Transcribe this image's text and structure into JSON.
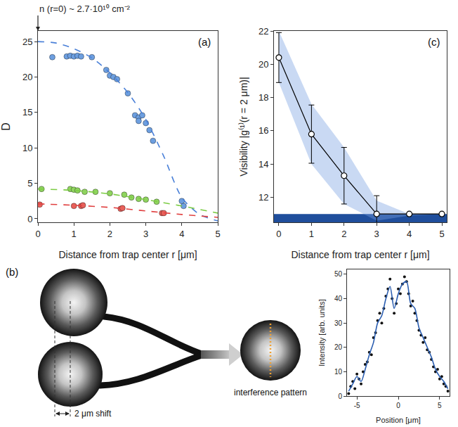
{
  "chart_data": [
    {
      "type": "scatter",
      "panel_label": "(a)",
      "annotations": [
        {
          "text": "n (r=0) ~ 2.7·10¹⁰ cm⁻²",
          "x": 0
        }
      ],
      "xlabel": "Distance from trap center r [μm]",
      "ylabel": "D",
      "xlim": [
        0,
        5
      ],
      "xticks": [
        0,
        1,
        2,
        3,
        4,
        5
      ],
      "ylim": [
        -0.5,
        26.5
      ],
      "yticks": [
        0,
        5,
        10,
        15,
        20,
        25
      ],
      "grid": false,
      "series": [
        {
          "type": "scatter",
          "marker": "circle",
          "color": "#6d9fe0",
          "x": [
            0.4,
            0.8,
            0.9,
            1.0,
            1.1,
            1.2,
            1.5,
            1.9,
            2.0,
            2.1,
            2.2,
            2.5,
            2.7,
            2.8,
            2.8,
            2.9,
            3.0,
            3.1,
            3.2,
            4.0,
            4.05
          ],
          "values": [
            22.8,
            22.9,
            23.0,
            22.9,
            23.0,
            22.9,
            22.8,
            21.0,
            20.2,
            20.0,
            19.7,
            17.7,
            14.6,
            14.3,
            13.8,
            14.6,
            13.5,
            12.5,
            11.0,
            2.5,
            1.8
          ]
        },
        {
          "type": "line",
          "line_style": "dash",
          "color": "#4a80d8",
          "x": [
            0,
            0.5,
            1,
            1.5,
            2,
            2.5,
            3,
            3.5,
            4,
            4.5,
            5
          ],
          "values": [
            25,
            24.8,
            24.0,
            22.7,
            20.6,
            17.8,
            14.0,
            8.8,
            3.0,
            0.6,
            -0.3
          ]
        },
        {
          "type": "scatter",
          "marker": "circle",
          "color": "#8fd45e",
          "x": [
            0.1,
            0.9,
            1.0,
            1.1,
            1.3,
            1.6,
            2.0,
            2.4,
            2.6,
            2.8,
            3.0,
            3.3
          ],
          "values": [
            4.2,
            4.2,
            4.1,
            4.0,
            3.8,
            3.8,
            3.6,
            3.4,
            3.0,
            2.8,
            2.7,
            2.4
          ]
        },
        {
          "type": "line",
          "line_style": "dash",
          "color": "#7ccc44",
          "x": [
            0,
            1,
            2,
            3,
            4,
            5
          ],
          "values": [
            4.2,
            4.0,
            3.5,
            2.7,
            1.8,
            0.8
          ]
        },
        {
          "type": "scatter",
          "marker": "circle",
          "color": "#e8605a",
          "x": [
            0.05,
            1.0,
            1.2,
            1.25,
            2.3,
            2.35,
            3.45,
            3.5
          ],
          "values": [
            2.0,
            1.8,
            1.8,
            1.9,
            1.4,
            1.5,
            0.8,
            0.8
          ]
        },
        {
          "type": "line",
          "line_style": "dash",
          "color": "#e04040",
          "x": [
            0,
            1,
            2,
            3,
            4,
            5
          ],
          "values": [
            2.1,
            1.9,
            1.6,
            1.1,
            0.6,
            0.2
          ]
        }
      ]
    },
    {
      "type": "line",
      "panel_label": "(c)",
      "xlabel": "Distance from trap center r [μm]",
      "ylabel": "Visibility |g⁽¹⁾(r = 2 μm)|",
      "xlim": [
        -0.15,
        5.15
      ],
      "xticks": [
        0,
        1,
        2,
        3,
        4,
        5
      ],
      "ylim": [
        10.5,
        22
      ],
      "yticks": [
        12,
        14,
        16,
        18,
        20,
        22
      ],
      "grid": false,
      "color": "#000000",
      "marker": "circle-open",
      "x": [
        0,
        1,
        2,
        3,
        4,
        5
      ],
      "values": [
        20.4,
        15.8,
        13.3,
        11.0,
        11.0,
        11.0
      ],
      "errors": [
        1.5,
        1.75,
        1.7,
        1.1,
        0,
        0
      ],
      "band_lower": [
        18.9,
        14.0,
        11.6,
        10.6,
        10.9,
        11.0
      ],
      "band_upper": [
        22.0,
        17.6,
        15.0,
        11.8,
        11.0,
        11.0
      ],
      "noise_floor": [
        10.5,
        11.0
      ]
    },
    {
      "type": "scatter",
      "xlabel": "Position [μm]",
      "ylabel": "Intensity [arb. units]",
      "xlim": [
        -6.2,
        6.2
      ],
      "xticks": [
        -5,
        0,
        5
      ],
      "ylim": [
        0,
        52
      ],
      "yticks": [
        0,
        10,
        20,
        30,
        40,
        50
      ],
      "grid": false,
      "series": [
        {
          "type": "scatter",
          "marker": "circle",
          "color": "#111111",
          "x": [
            -6,
            -5.75,
            -5.5,
            -5.25,
            -5,
            -4.75,
            -4.5,
            -4.25,
            -4,
            -3.75,
            -3.5,
            -3.25,
            -3,
            -2.75,
            -2.5,
            -2.25,
            -2,
            -1.75,
            -1.5,
            -1.25,
            -1,
            -0.75,
            -0.5,
            -0.25,
            0,
            0.25,
            0.5,
            0.75,
            1,
            1.25,
            1.5,
            1.75,
            2,
            2.25,
            2.5,
            2.75,
            3,
            3.25,
            3.5,
            3.75,
            4,
            4.25,
            4.5,
            4.75,
            5,
            5.25,
            5.5,
            5.75,
            6
          ],
          "values": [
            1,
            4,
            6,
            3,
            9,
            7,
            5,
            10,
            13,
            14,
            18,
            17,
            24,
            26,
            31,
            34,
            30,
            36,
            41,
            44,
            48,
            40,
            34,
            38,
            44,
            42,
            46,
            49,
            47,
            42,
            37,
            39,
            34,
            31,
            27,
            25,
            22,
            24,
            19,
            18,
            15,
            12,
            10,
            11,
            7,
            8,
            5,
            4,
            2
          ]
        },
        {
          "type": "line",
          "line_style": "solid",
          "color": "#2a5db0",
          "x": [
            -6,
            -5.5,
            -5,
            -4.5,
            -4,
            -3.5,
            -3,
            -2.5,
            -2,
            -1.5,
            -1,
            -0.5,
            0,
            0.5,
            1,
            1.5,
            2,
            2.5,
            3,
            3.5,
            4,
            4.5,
            5,
            5.5,
            6
          ],
          "values": [
            2,
            5,
            8,
            6,
            11,
            17,
            22,
            30,
            33,
            40,
            45,
            36,
            42,
            46,
            47,
            38,
            36,
            28,
            24,
            20,
            16,
            11,
            8,
            6,
            3
          ]
        }
      ]
    }
  ],
  "diagram": {
    "panel_label": "(b)",
    "shift_label": "2 μm shift",
    "output_label": "interference pattern"
  }
}
